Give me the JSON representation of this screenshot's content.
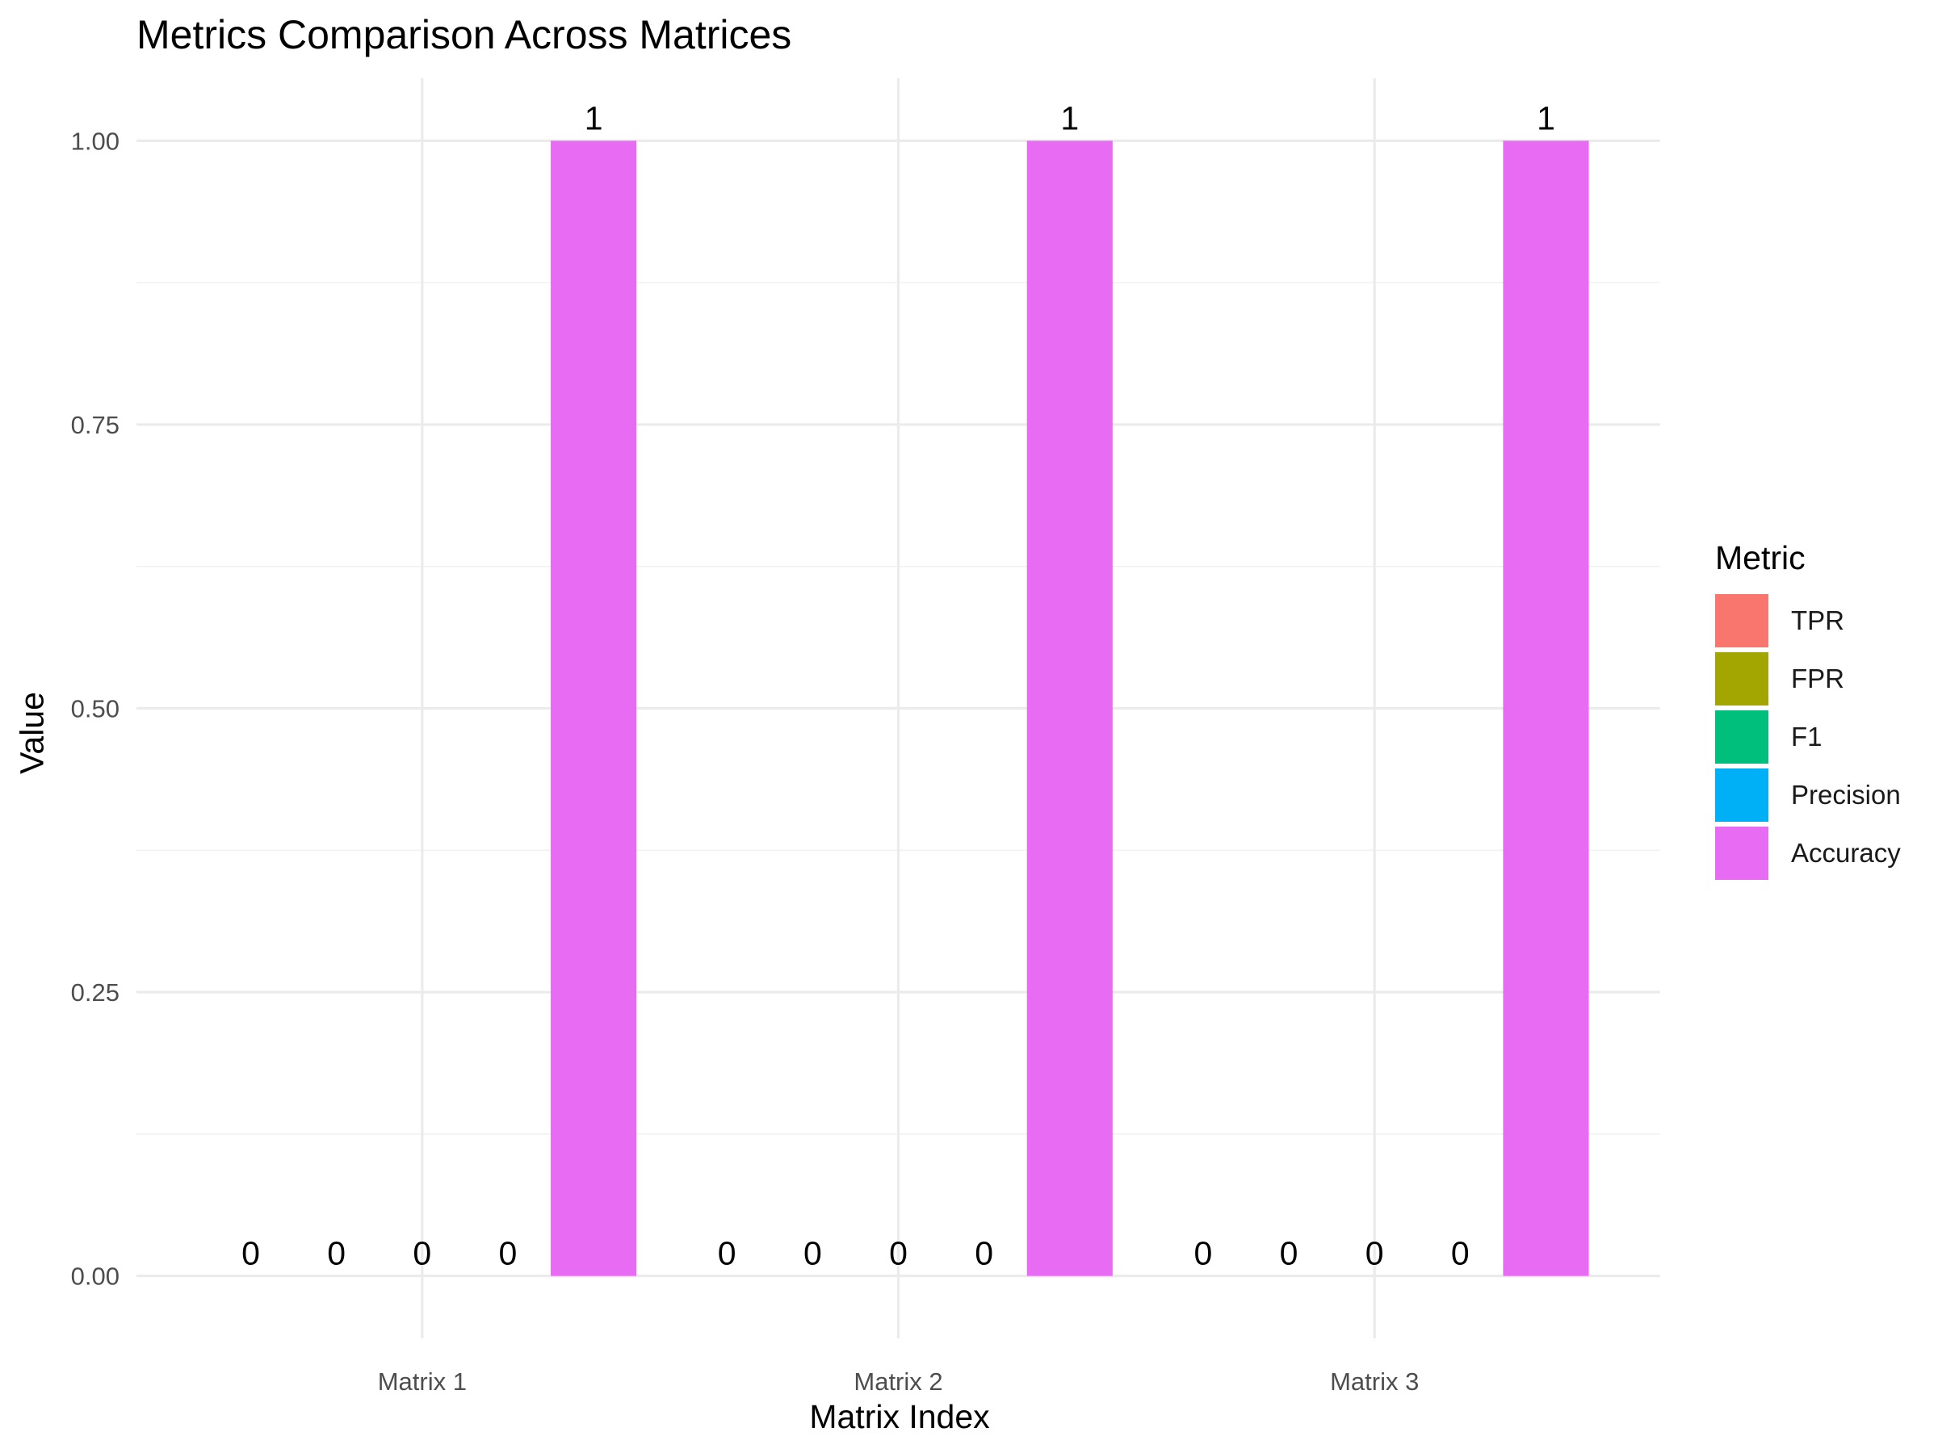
{
  "chart_data": {
    "type": "bar",
    "title": "Metrics Comparison Across Matrices",
    "xlabel": "Matrix Index",
    "ylabel": "Value",
    "categories": [
      "Matrix 1",
      "Matrix 2",
      "Matrix 3"
    ],
    "ylim": [
      -0.055,
      1.055
    ],
    "y_ticks": [
      0.0,
      0.25,
      0.5,
      0.75,
      1.0
    ],
    "y_tick_labels": [
      "0.00",
      "0.25",
      "0.50",
      "0.75",
      "1.00"
    ],
    "grid": true,
    "legend": {
      "title": "Metric",
      "position": "right"
    },
    "series": [
      {
        "name": "TPR",
        "color": "#F8766D",
        "values": [
          0,
          0,
          0
        ],
        "labels": [
          "0",
          "0",
          "0"
        ]
      },
      {
        "name": "FPR",
        "color": "#A3A500",
        "values": [
          0,
          0,
          0
        ],
        "labels": [
          "0",
          "0",
          "0"
        ]
      },
      {
        "name": "F1",
        "color": "#00BF7D",
        "values": [
          0,
          0,
          0
        ],
        "labels": [
          "0",
          "0",
          "0"
        ]
      },
      {
        "name": "Precision",
        "color": "#00B0F6",
        "values": [
          0,
          0,
          0
        ],
        "labels": [
          "0",
          "0",
          "0"
        ]
      },
      {
        "name": "Accuracy",
        "color": "#E76BF3",
        "values": [
          1,
          1,
          1
        ],
        "labels": [
          "1",
          "1",
          "1"
        ]
      }
    ]
  }
}
